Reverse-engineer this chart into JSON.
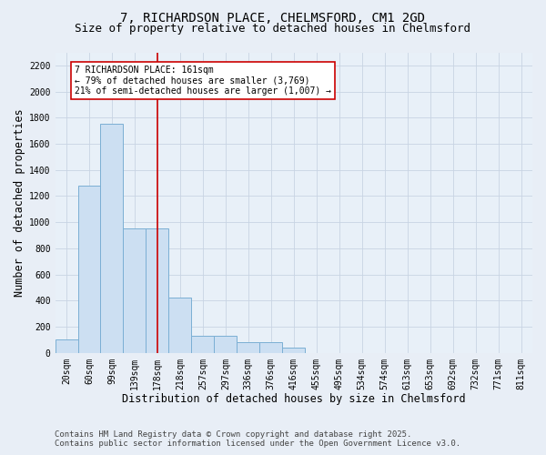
{
  "title_line1": "7, RICHARDSON PLACE, CHELMSFORD, CM1 2GD",
  "title_line2": "Size of property relative to detached houses in Chelmsford",
  "xlabel": "Distribution of detached houses by size in Chelmsford",
  "ylabel": "Number of detached properties",
  "categories": [
    "20sqm",
    "60sqm",
    "99sqm",
    "139sqm",
    "178sqm",
    "218sqm",
    "257sqm",
    "297sqm",
    "336sqm",
    "376sqm",
    "416sqm",
    "455sqm",
    "495sqm",
    "534sqm",
    "574sqm",
    "613sqm",
    "653sqm",
    "692sqm",
    "732sqm",
    "771sqm",
    "811sqm"
  ],
  "values": [
    100,
    1280,
    1750,
    950,
    950,
    420,
    130,
    130,
    80,
    80,
    40,
    0,
    0,
    0,
    0,
    0,
    0,
    0,
    0,
    0,
    0
  ],
  "bar_color": "#ccdff2",
  "bar_edge_color": "#7bafd4",
  "vline_x": 4.0,
  "vline_color": "#cc0000",
  "annotation_text": "7 RICHARDSON PLACE: 161sqm\n← 79% of detached houses are smaller (3,769)\n21% of semi-detached houses are larger (1,007) →",
  "annotation_box_color": "#ffffff",
  "annotation_box_edgecolor": "#cc0000",
  "ylim": [
    0,
    2300
  ],
  "yticks": [
    0,
    200,
    400,
    600,
    800,
    1000,
    1200,
    1400,
    1600,
    1800,
    2000,
    2200
  ],
  "grid_color": "#c8d4e3",
  "bg_color": "#e8eef6",
  "plot_bg_color": "#e8f0f8",
  "footer_line1": "Contains HM Land Registry data © Crown copyright and database right 2025.",
  "footer_line2": "Contains public sector information licensed under the Open Government Licence v3.0.",
  "title_fontsize": 10,
  "subtitle_fontsize": 9,
  "tick_fontsize": 7,
  "label_fontsize": 8.5,
  "footer_fontsize": 6.5
}
